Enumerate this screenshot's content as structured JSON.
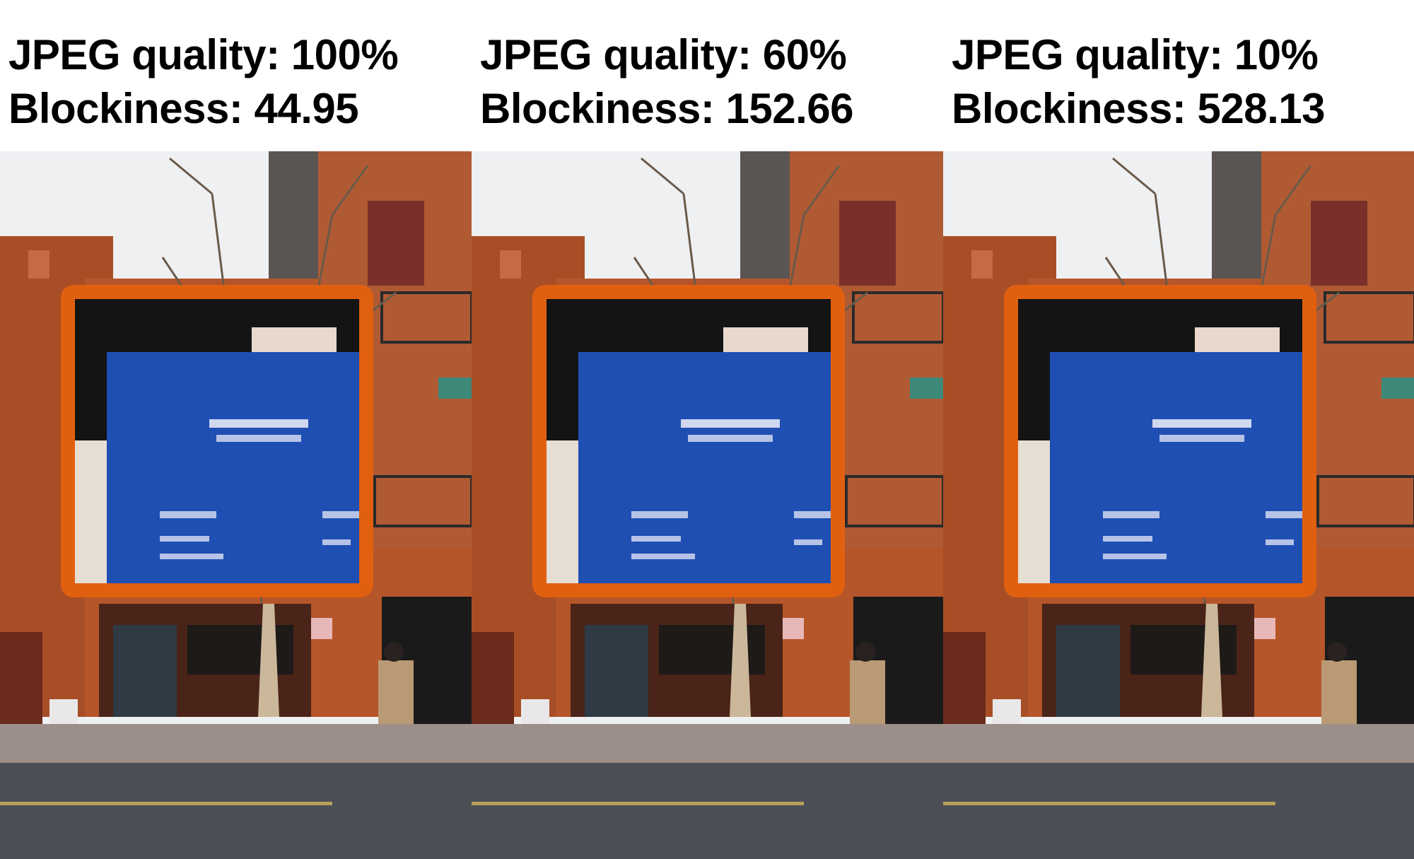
{
  "panels": [
    {
      "quality_label": "JPEG quality: 100%",
      "blockiness_label": "Blockiness: 44.95"
    },
    {
      "quality_label": "JPEG quality: 60%",
      "blockiness_label": "Blockiness: 152.66"
    },
    {
      "quality_label": "JPEG quality: 10%",
      "blockiness_label": "Blockiness: 528.13"
    }
  ],
  "colors": {
    "highlight_border": "#e0600f",
    "brick": "#b5562a",
    "sign_blue": "#1f4fb3",
    "road": "#4d4f57",
    "sky": "#eef0f2"
  }
}
